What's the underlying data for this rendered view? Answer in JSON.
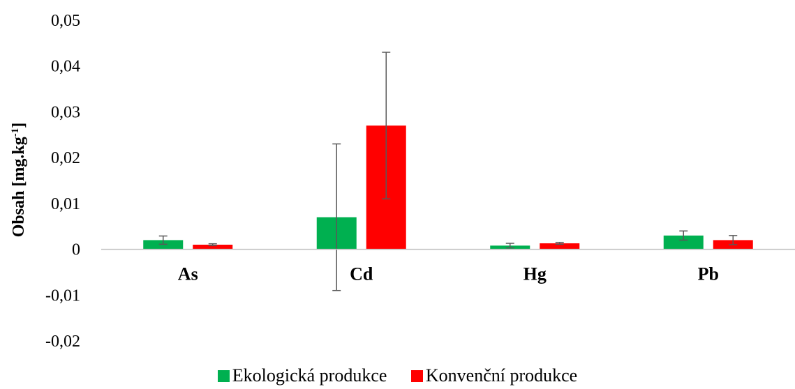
{
  "chart_data": {
    "type": "bar",
    "categories": [
      "As",
      "Cd",
      "Hg",
      "Pb"
    ],
    "series": [
      {
        "name": "Ekologická produkce",
        "color": "#00b050",
        "values": [
          0.002,
          0.007,
          0.0008,
          0.003
        ],
        "error": [
          0.0009,
          0.016,
          0.0005,
          0.001
        ]
      },
      {
        "name": "Konvenční produkce",
        "color": "#ff0000",
        "values": [
          0.001,
          0.027,
          0.0013,
          0.002
        ],
        "error": [
          0.0002,
          0.016,
          0.0002,
          0.001
        ]
      }
    ],
    "ylabel_main": "Obsah [mg.kg",
    "ylabel_sup": "-1",
    "ylabel_end": "]",
    "ylim": [
      -0.02,
      0.05
    ],
    "yticks": [
      -0.02,
      -0.01,
      0,
      0.01,
      0.02,
      0.03,
      0.04,
      0.05
    ],
    "ytick_labels": [
      "-0,02",
      "-0,01",
      "0",
      "0,01",
      "0,02",
      "0,03",
      "0,04",
      "0,05"
    ],
    "grid": false,
    "legend_position": "bottom"
  }
}
